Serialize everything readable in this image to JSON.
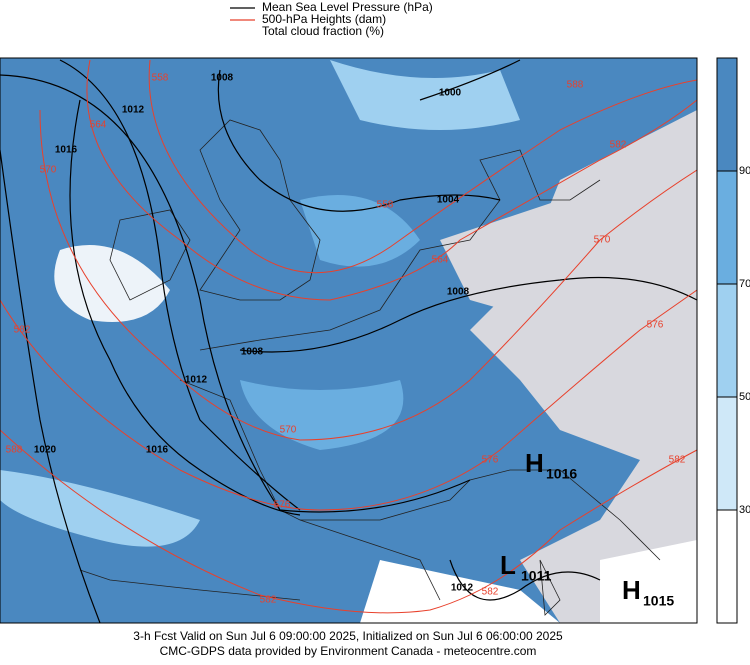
{
  "legend": [
    {
      "label": "Mean Sea Level Pressure (hPa)",
      "color": "#000000"
    },
    {
      "label": "500-hPa Heights (dam)",
      "color": "#e8412c"
    },
    {
      "label": "Total cloud fraction (%)"
    }
  ],
  "colorbar": {
    "range": [
      10,
      110
    ],
    "ticks": [
      30,
      50,
      70,
      90
    ],
    "colors": [
      "#ffffff",
      "#cfe8f8",
      "#9fd0f0",
      "#6aaee0",
      "#4a88c0"
    ]
  },
  "isobar_labels": [
    "1012",
    "1008",
    "1016",
    "1000",
    "1004",
    "1008",
    "1008",
    "1012",
    "1016",
    "1020",
    "1012"
  ],
  "height_labels": [
    "558",
    "564",
    "570",
    "582",
    "588",
    "558",
    "564",
    "570",
    "576",
    "582",
    "588",
    "582",
    "570",
    "576",
    "576",
    "582",
    "582"
  ],
  "centers": [
    {
      "letter": "H",
      "value": "1016"
    },
    {
      "letter": "L",
      "value": "1011"
    },
    {
      "letter": "H",
      "value": "1015"
    }
  ],
  "footer": [
    "3-h Fcst Valid on Sun Jul  6 09:00:00 2025, Initialized on Sun Jul  6 06:00:00 2025",
    "CMC-GDPS data provided by Environment Canada - meteocentre.com"
  ]
}
